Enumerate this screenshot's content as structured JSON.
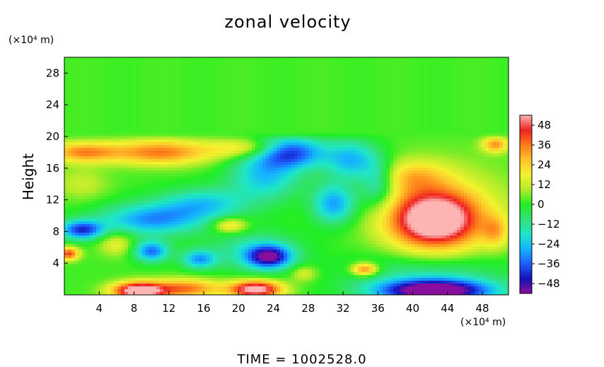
{
  "chart_data": {
    "type": "heatmap",
    "title": "zonal velocity",
    "ylabel": "Height",
    "xlabel": "",
    "x_unit": "(×10⁴ m)",
    "y_unit": "(×10⁴ m)",
    "x_ticks": [
      4,
      8,
      12,
      16,
      20,
      24,
      28,
      32,
      36,
      40,
      44,
      48
    ],
    "y_ticks": [
      4,
      8,
      12,
      16,
      20,
      24,
      28
    ],
    "xlim": [
      0,
      51
    ],
    "ylim": [
      0,
      30
    ],
    "colorbar": {
      "ticks": [
        48,
        36,
        24,
        12,
        0,
        -12,
        -24,
        -36,
        -48
      ],
      "range": [
        -54,
        54
      ],
      "colors": [
        "#8a0e9e",
        "#1212bb",
        "#1e5eff",
        "#14b4ff",
        "#1ee6c8",
        "#33e07a",
        "#22ee22",
        "#b2ec2a",
        "#f4f22e",
        "#ffc22a",
        "#ff7a1a",
        "#ee2222",
        "#ffb4b4"
      ]
    },
    "field_features": [
      {
        "desc": "upper layer",
        "x": [
          0,
          51
        ],
        "y": [
          20,
          30
        ],
        "value": 2
      },
      {
        "desc": "strong positive core",
        "x": 42.5,
        "y": 9.5,
        "value": 56
      },
      {
        "desc": "strong negative core",
        "x": 42.5,
        "y": 1,
        "value": -50
      },
      {
        "desc": "negative minimum",
        "x": 23.5,
        "y": 4.8,
        "value": -50
      },
      {
        "desc": "negative region",
        "x": 26,
        "y": 18,
        "value": -38
      },
      {
        "desc": "negative band",
        "x": 12,
        "y": 10,
        "value": -30
      },
      {
        "desc": "surface maximum",
        "x": 8.5,
        "y": 0.6,
        "value": 52
      },
      {
        "desc": "surface maximum",
        "x": 22,
        "y": 0.8,
        "value": 50
      },
      {
        "desc": "positive region",
        "x": 12,
        "y": 17.8,
        "value": 30
      }
    ]
  },
  "annotations": {
    "time_text": "TIME = 1002528.0"
  }
}
